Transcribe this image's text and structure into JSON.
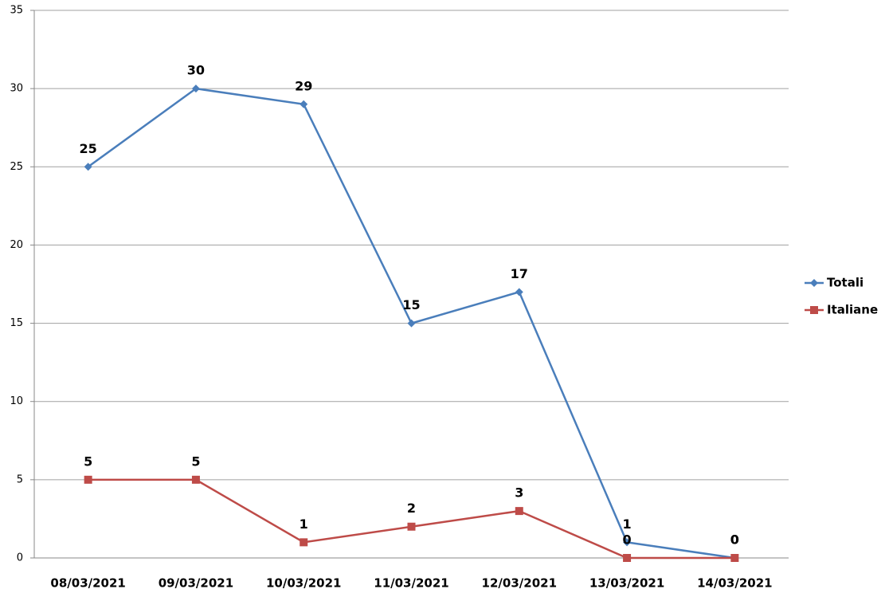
{
  "chart_data": {
    "type": "line",
    "categories": [
      "08/03/2021",
      "09/03/2021",
      "10/03/2021",
      "11/03/2021",
      "12/03/2021",
      "13/03/2021",
      "14/03/2021"
    ],
    "series": [
      {
        "name": "Totali",
        "color": "#4a7ebb",
        "marker": "diamond",
        "values": [
          25,
          30,
          29,
          15,
          17,
          1,
          0
        ]
      },
      {
        "name": "Italiane",
        "color": "#be4b48",
        "marker": "square",
        "values": [
          5,
          5,
          1,
          2,
          3,
          0,
          0
        ]
      }
    ],
    "ylim": [
      0,
      35
    ],
    "yticks": [
      0,
      5,
      10,
      15,
      20,
      25,
      30,
      35
    ],
    "grid": true,
    "legend": "right"
  }
}
